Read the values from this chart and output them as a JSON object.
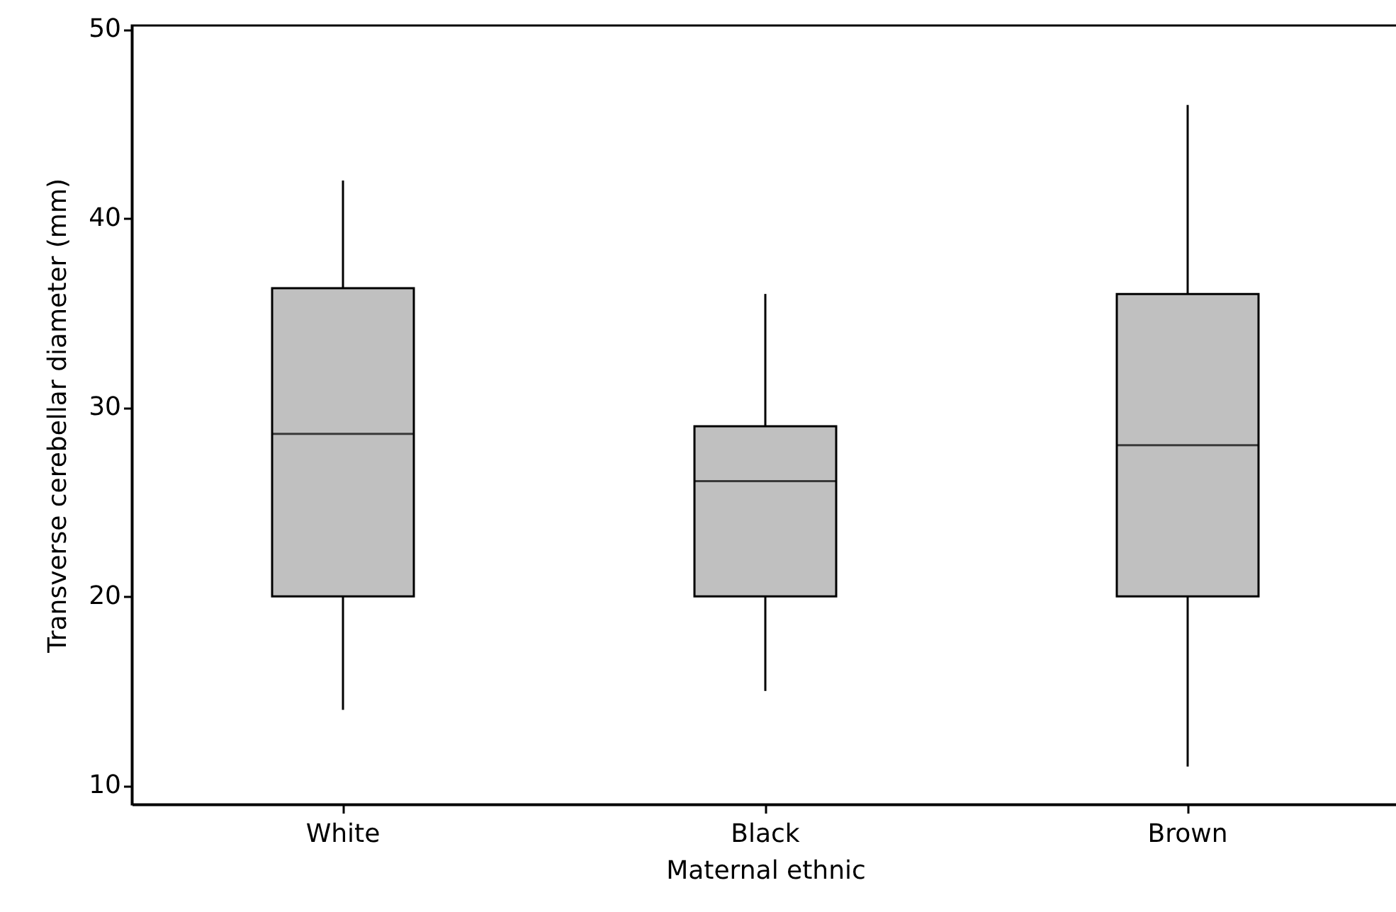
{
  "chart_data": {
    "type": "box",
    "xlabel": "Maternal ethnic",
    "ylabel": "Transverse cerebellar diameter (mm)",
    "categories": [
      "White",
      "Black",
      "Brown"
    ],
    "boxes": [
      {
        "low": 14,
        "q1": 20,
        "median": 28.6,
        "q3": 36.3,
        "high": 42
      },
      {
        "low": 15,
        "q1": 20,
        "median": 26.1,
        "q3": 29,
        "high": 36
      },
      {
        "low": 11,
        "q1": 20,
        "median": 28,
        "q3": 36,
        "high": 46
      }
    ],
    "colors": [
      "#c0c0c0",
      "#c0c0c0",
      "#c0c0c0"
    ],
    "ylim": [
      9,
      50.2
    ],
    "yticks": [
      10,
      20,
      30,
      40,
      50
    ],
    "grid": false
  }
}
